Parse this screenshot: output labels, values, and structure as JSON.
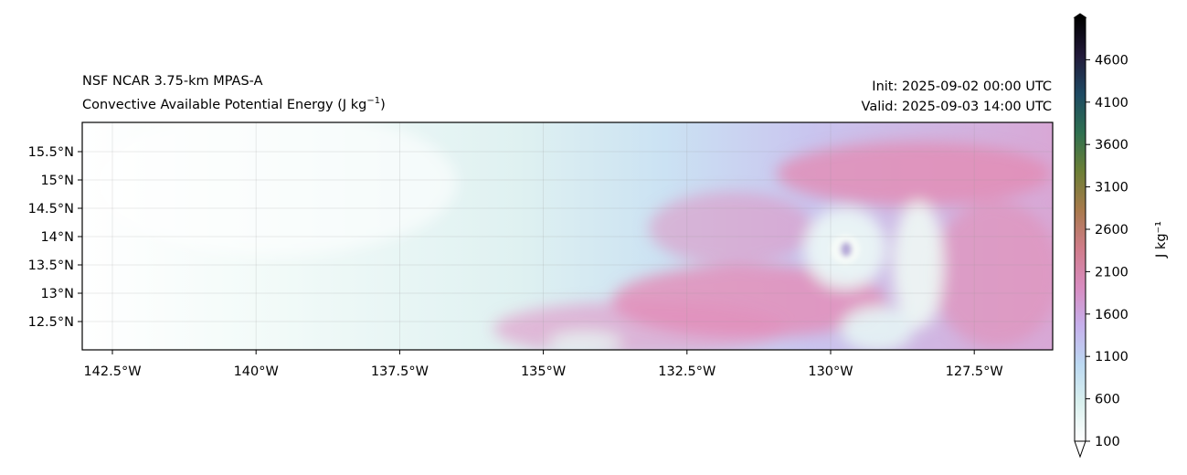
{
  "title_left": {
    "line1": "NSF NCAR 3.75-km MPAS-A",
    "line2": "Convective Available Potential Energy (J kg",
    "line2_sup": "−1",
    "line2_end": ")"
  },
  "title_right": {
    "init": "Init: 2025-09-02 00:00 UTC",
    "valid": "Valid: 2025-09-03 14:00 UTC"
  },
  "chart_data": {
    "type": "heatmap",
    "variable": "Convective Available Potential Energy",
    "units": "J kg⁻¹",
    "extent": {
      "lon": [
        -143.0,
        -126.1
      ],
      "lat": [
        12.0,
        16.0
      ]
    },
    "lon_ticks": [
      -142.5,
      -140,
      -137.5,
      -135,
      -132.5,
      -130,
      -127.5
    ],
    "lon_tick_labels": [
      "142.5°W",
      "140°W",
      "137.5°W",
      "135°W",
      "132.5°W",
      "130°W",
      "127.5°W"
    ],
    "lat_ticks": [
      15.5,
      15,
      14.5,
      14,
      13.5,
      13,
      12.5
    ],
    "lat_tick_labels": [
      "15.5°N",
      "15°N",
      "14.5°N",
      "14°N",
      "13.5°N",
      "13°N",
      "12.5°N"
    ],
    "grid": true,
    "storm_center": {
      "lon": -129.6,
      "lat": 13.8
    },
    "colorbar": {
      "label": "J kg⁻¹",
      "range": [
        100,
        5100
      ],
      "extend": "both",
      "ticks": [
        100,
        600,
        1100,
        1600,
        2100,
        2600,
        3100,
        3600,
        4100,
        4600
      ],
      "tick_labels": [
        "100",
        "600",
        "1100",
        "1600",
        "2100",
        "2600",
        "3100",
        "3600",
        "4100",
        "4600"
      ],
      "colors": [
        "#ffffff",
        "#d9f0ee",
        "#bcd9f2",
        "#c6b0ec",
        "#d88cc0",
        "#d07c8a",
        "#a87a4c",
        "#6c7f36",
        "#2f7050",
        "#1e4a63",
        "#221a3a",
        "#000000"
      ]
    }
  }
}
